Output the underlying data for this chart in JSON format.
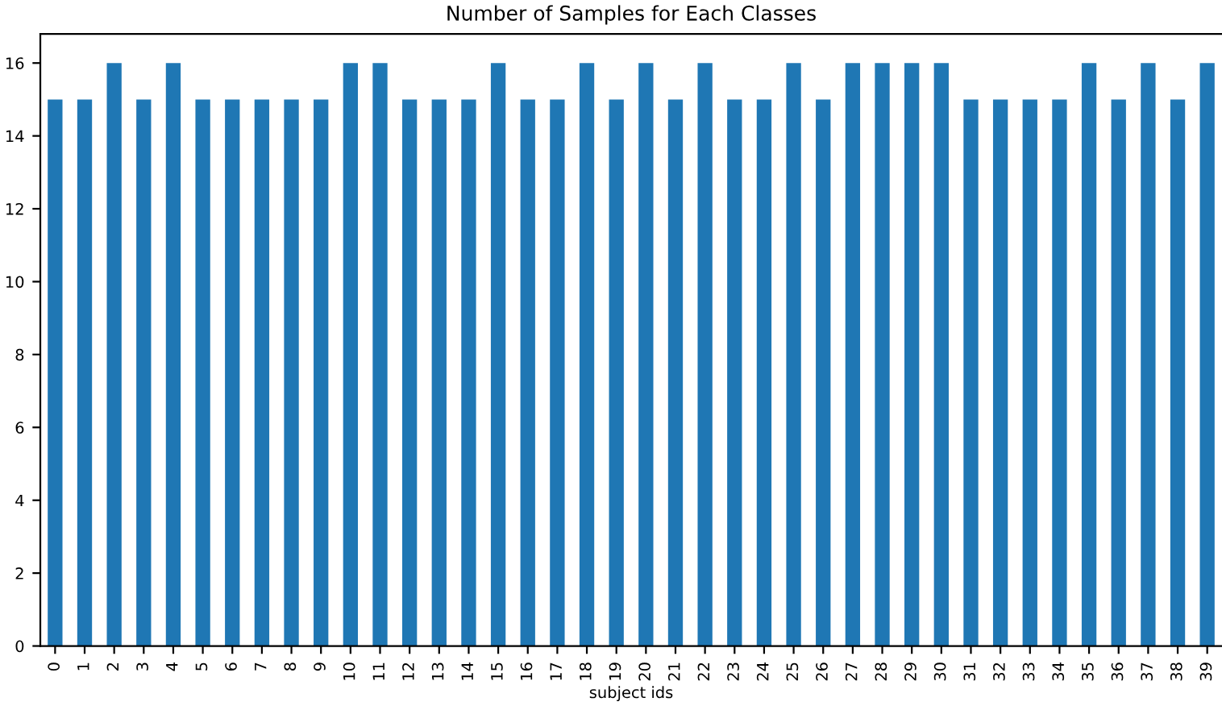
{
  "chart_data": {
    "type": "bar",
    "title": "Number of Samples for Each Classes",
    "xlabel": "subject ids",
    "categories": [
      "0",
      "1",
      "2",
      "3",
      "4",
      "5",
      "6",
      "7",
      "8",
      "9",
      "10",
      "11",
      "12",
      "13",
      "14",
      "15",
      "16",
      "17",
      "18",
      "19",
      "20",
      "21",
      "22",
      "23",
      "24",
      "25",
      "26",
      "27",
      "28",
      "29",
      "30",
      "31",
      "32",
      "33",
      "34",
      "35",
      "36",
      "37",
      "38",
      "39"
    ],
    "values": [
      15,
      15,
      16,
      15,
      16,
      15,
      15,
      15,
      15,
      15,
      16,
      16,
      15,
      15,
      15,
      16,
      15,
      15,
      16,
      15,
      16,
      15,
      16,
      15,
      15,
      16,
      15,
      16,
      16,
      16,
      16,
      15,
      15,
      15,
      15,
      16,
      15,
      16,
      15,
      16
    ],
    "color": "#1f77b4",
    "ylim": [
      0,
      16.8
    ],
    "yticks": [
      0,
      2,
      4,
      6,
      8,
      10,
      12,
      14,
      16
    ],
    "grid": false
  }
}
